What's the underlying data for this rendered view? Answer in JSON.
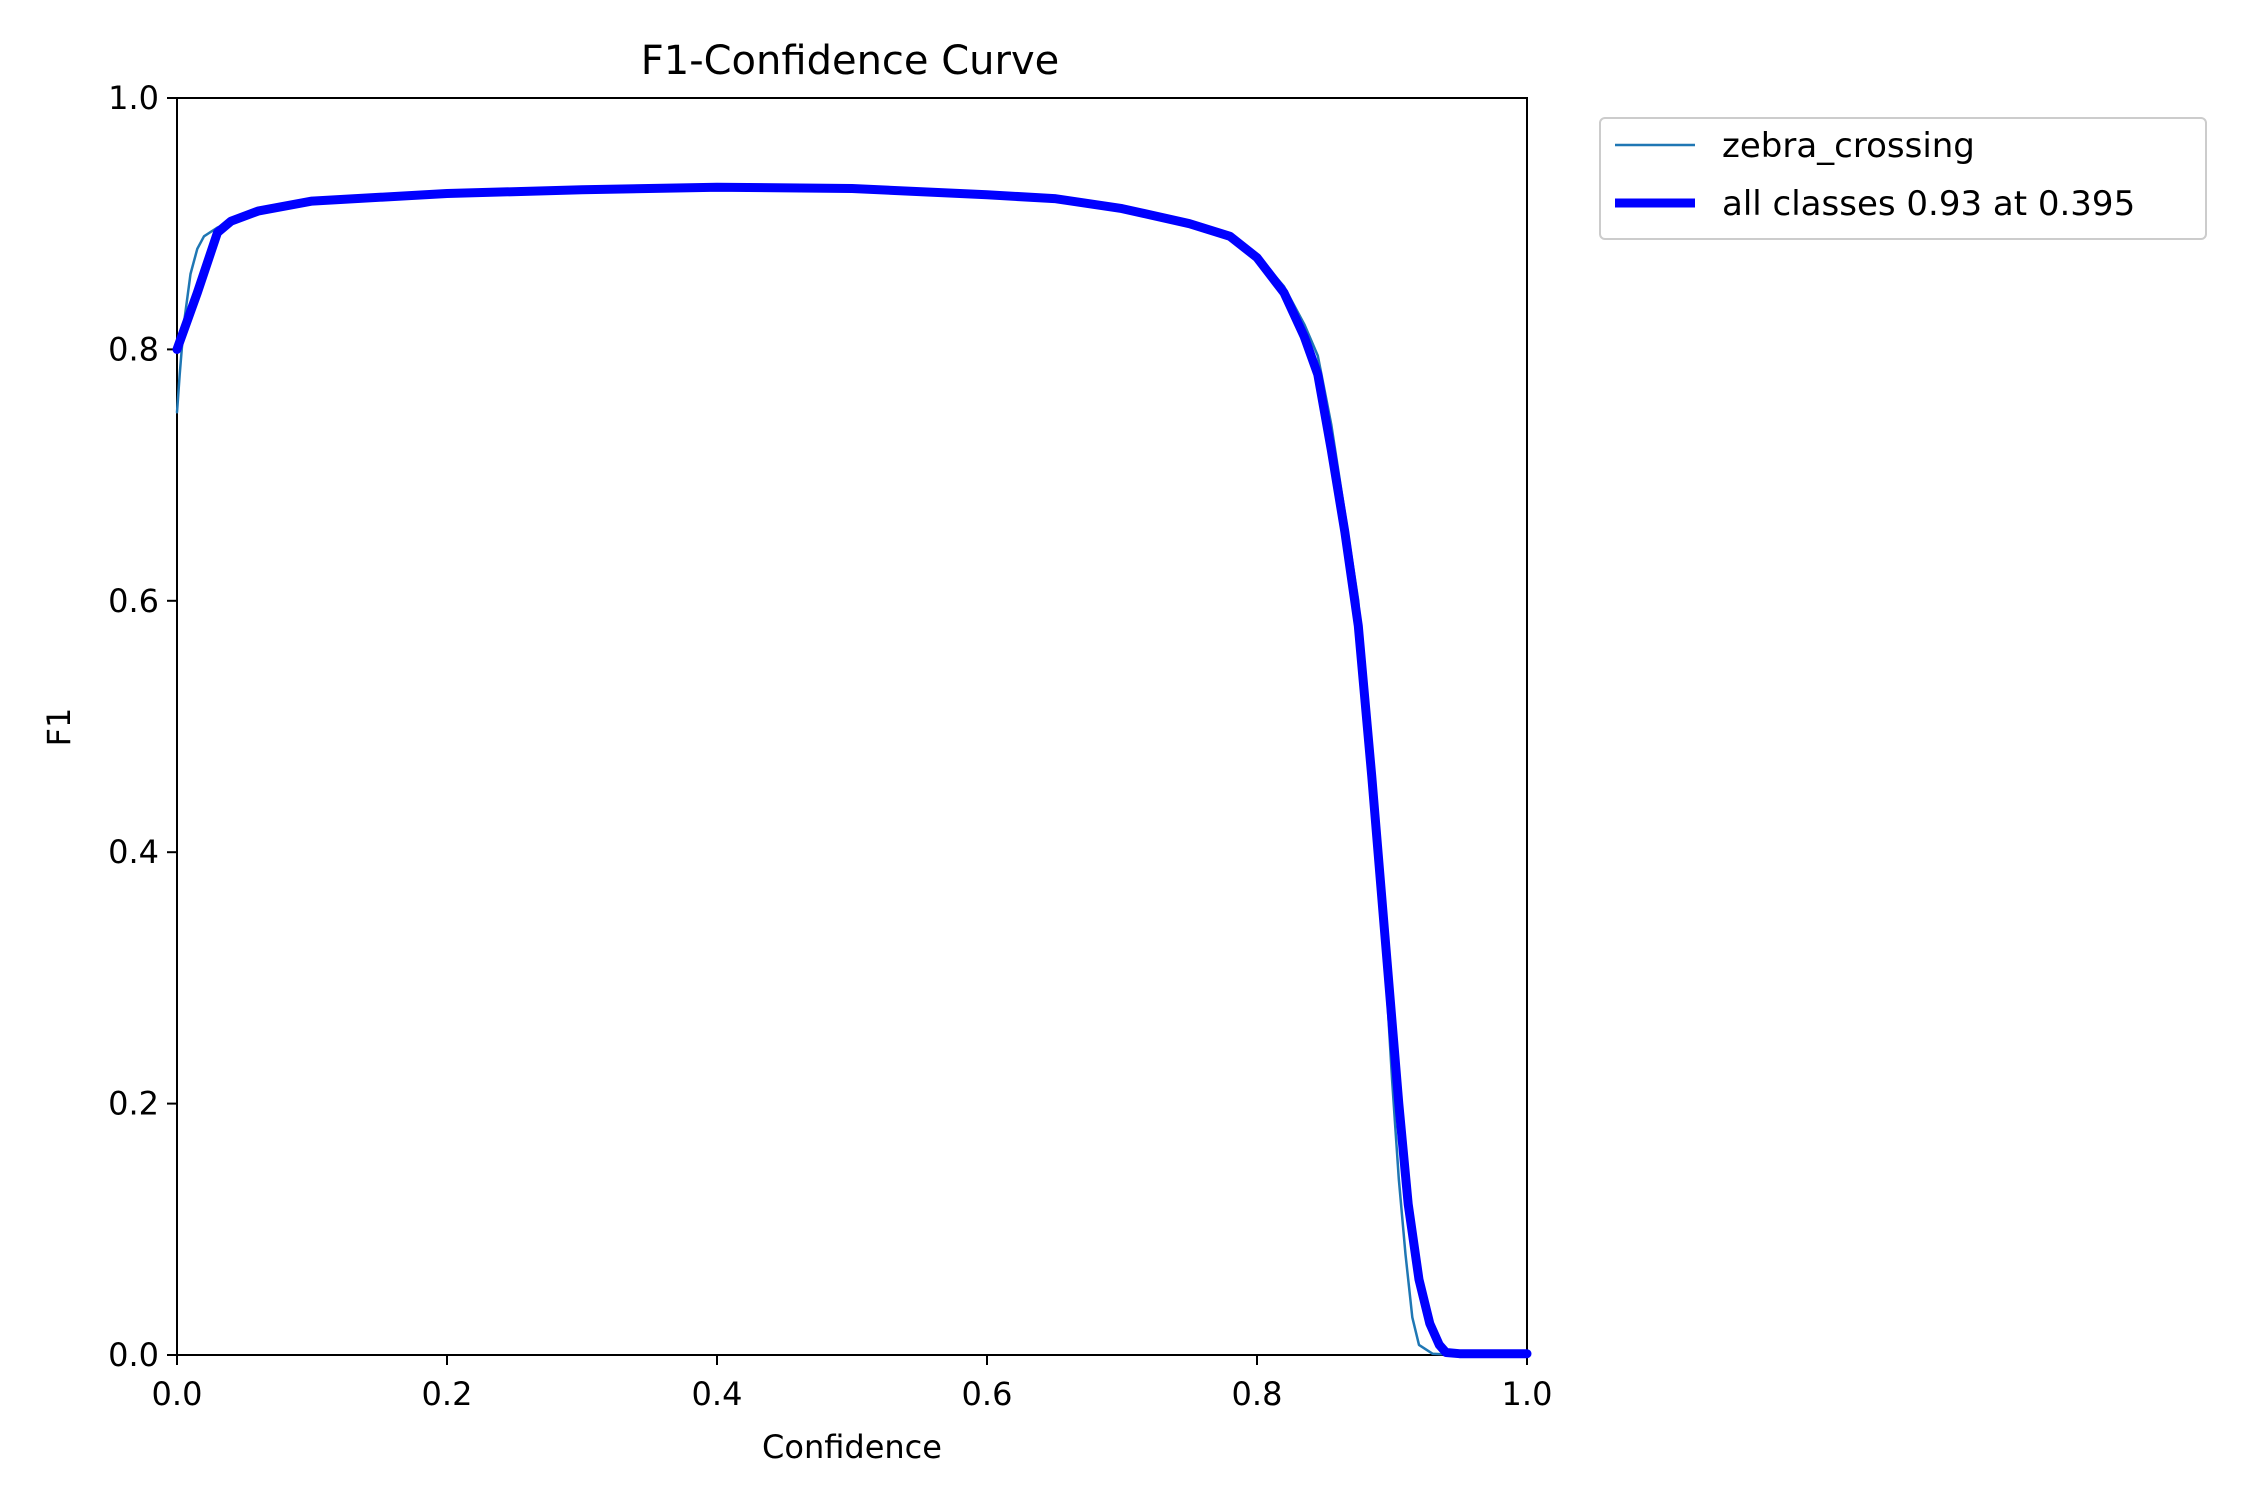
{
  "chart_data": {
    "type": "line",
    "title": "F1-Confidence Curve",
    "xlabel": "Confidence",
    "ylabel": "F1",
    "xlim": [
      0.0,
      1.0
    ],
    "ylim": [
      0.0,
      1.0
    ],
    "xticks": [
      "0.0",
      "0.2",
      "0.4",
      "0.6",
      "0.8",
      "1.0"
    ],
    "yticks": [
      "0.0",
      "0.2",
      "0.4",
      "0.6",
      "0.8",
      "1.0"
    ],
    "grid": false,
    "legend_position": "outside upper right",
    "series": [
      {
        "name": "zebra_crossing",
        "color": "#1f77b4",
        "style": "thin",
        "points": [
          [
            0.0,
            0.75
          ],
          [
            0.002,
            0.78
          ],
          [
            0.005,
            0.82
          ],
          [
            0.01,
            0.86
          ],
          [
            0.015,
            0.88
          ],
          [
            0.02,
            0.89
          ],
          [
            0.03,
            0.897
          ],
          [
            0.05,
            0.905
          ],
          [
            0.1,
            0.918
          ],
          [
            0.2,
            0.924
          ],
          [
            0.3,
            0.927
          ],
          [
            0.4,
            0.929
          ],
          [
            0.5,
            0.928
          ],
          [
            0.6,
            0.923
          ],
          [
            0.65,
            0.92
          ],
          [
            0.7,
            0.912
          ],
          [
            0.75,
            0.9
          ],
          [
            0.78,
            0.89
          ],
          [
            0.8,
            0.875
          ],
          [
            0.82,
            0.85
          ],
          [
            0.835,
            0.82
          ],
          [
            0.845,
            0.795
          ],
          [
            0.855,
            0.74
          ],
          [
            0.865,
            0.67
          ],
          [
            0.875,
            0.6
          ],
          [
            0.885,
            0.45
          ],
          [
            0.895,
            0.31
          ],
          [
            0.9,
            0.22
          ],
          [
            0.905,
            0.14
          ],
          [
            0.91,
            0.08
          ],
          [
            0.915,
            0.03
          ],
          [
            0.92,
            0.008
          ],
          [
            0.93,
            0.001
          ],
          [
            0.95,
            0.0
          ],
          [
            1.0,
            0.0
          ]
        ]
      },
      {
        "name": "all classes 0.93 at 0.395",
        "color": "#0000ff",
        "style": "thick",
        "points": [
          [
            0.0,
            0.8
          ],
          [
            0.015,
            0.845
          ],
          [
            0.03,
            0.893
          ],
          [
            0.04,
            0.902
          ],
          [
            0.06,
            0.91
          ],
          [
            0.1,
            0.918
          ],
          [
            0.2,
            0.924
          ],
          [
            0.3,
            0.927
          ],
          [
            0.4,
            0.929
          ],
          [
            0.5,
            0.928
          ],
          [
            0.6,
            0.923
          ],
          [
            0.65,
            0.92
          ],
          [
            0.7,
            0.912
          ],
          [
            0.75,
            0.9
          ],
          [
            0.78,
            0.89
          ],
          [
            0.8,
            0.873
          ],
          [
            0.82,
            0.845
          ],
          [
            0.835,
            0.81
          ],
          [
            0.845,
            0.78
          ],
          [
            0.855,
            0.72
          ],
          [
            0.865,
            0.655
          ],
          [
            0.875,
            0.58
          ],
          [
            0.885,
            0.46
          ],
          [
            0.895,
            0.33
          ],
          [
            0.905,
            0.2
          ],
          [
            0.912,
            0.12
          ],
          [
            0.92,
            0.06
          ],
          [
            0.928,
            0.025
          ],
          [
            0.935,
            0.008
          ],
          [
            0.94,
            0.002
          ],
          [
            0.95,
            0.001
          ],
          [
            1.0,
            0.001
          ]
        ]
      }
    ]
  }
}
